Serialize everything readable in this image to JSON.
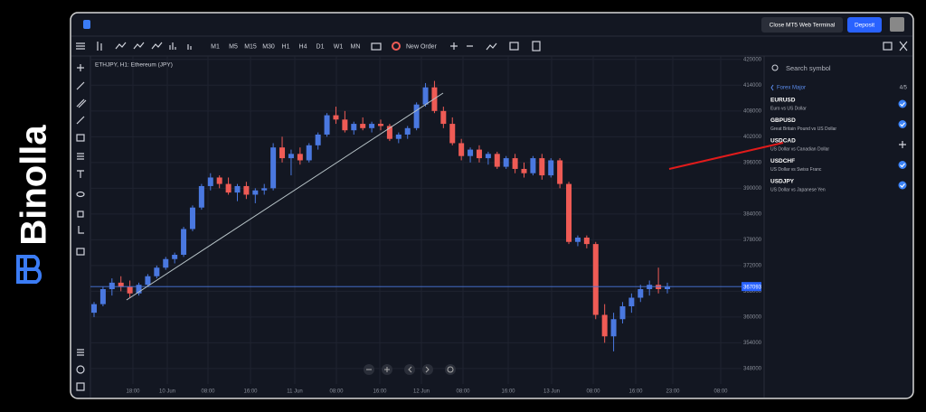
{
  "brand": "Binolla",
  "topbar": {
    "close_button": "Close MT5 Web Terminal",
    "deposit_button": "Deposit"
  },
  "toolbar": {
    "timeframes": [
      "M1",
      "M5",
      "M15",
      "M30",
      "H1",
      "H4",
      "D1",
      "W1",
      "MN"
    ],
    "active": "H1",
    "new_order": "New Order"
  },
  "chart": {
    "type": "candlestick",
    "title": "ETHJPY, H1: Ethereum (JPY)",
    "ylim": [
      344400,
      420800
    ],
    "yticks": [
      420000,
      414000,
      408000,
      402000,
      396000,
      390000,
      384000,
      378000,
      372000,
      366000,
      360000,
      354000,
      348000
    ],
    "xticks": [
      "18:00",
      "10 Jun",
      "08:00",
      "16:00",
      "11 Jun",
      "08:00",
      "16:00",
      "12 Jun",
      "08:00",
      "16:00",
      "13 Jun",
      "08:00",
      "16:00",
      "23:00",
      "08:00"
    ],
    "up_color": "#4a78e0",
    "down_color": "#ef5b55",
    "price_line": 367093,
    "candles": [
      [
        361000,
        363500,
        360000,
        363000
      ],
      [
        363000,
        367000,
        362500,
        366500
      ],
      [
        366500,
        369000,
        365000,
        368000
      ],
      [
        368000,
        369500,
        366000,
        367000
      ],
      [
        367000,
        368500,
        364500,
        365500
      ],
      [
        365500,
        368000,
        365000,
        367500
      ],
      [
        367500,
        370000,
        367000,
        369500
      ],
      [
        369500,
        372000,
        369000,
        371500
      ],
      [
        371500,
        374000,
        371000,
        373500
      ],
      [
        373500,
        375000,
        372500,
        374500
      ],
      [
        374500,
        381000,
        374000,
        380500
      ],
      [
        380500,
        386000,
        380000,
        385500
      ],
      [
        385500,
        391000,
        385000,
        390500
      ],
      [
        390500,
        393500,
        389500,
        392500
      ],
      [
        392500,
        393000,
        390000,
        391000
      ],
      [
        391000,
        392500,
        388500,
        389000
      ],
      [
        389000,
        391000,
        387000,
        390500
      ],
      [
        390500,
        391500,
        387500,
        388500
      ],
      [
        388500,
        390000,
        386500,
        389500
      ],
      [
        389500,
        391000,
        388500,
        390000
      ],
      [
        390000,
        400500,
        389500,
        399500
      ],
      [
        399500,
        402000,
        396000,
        397000
      ],
      [
        397000,
        399000,
        393000,
        398000
      ],
      [
        398000,
        399500,
        395500,
        396500
      ],
      [
        396500,
        400500,
        396000,
        400000
      ],
      [
        400000,
        403000,
        399000,
        402500
      ],
      [
        402500,
        407500,
        402000,
        407000
      ],
      [
        407000,
        409000,
        405000,
        406000
      ],
      [
        406000,
        408000,
        403000,
        403500
      ],
      [
        403500,
        405500,
        402500,
        405000
      ],
      [
        405000,
        406500,
        403500,
        404000
      ],
      [
        404000,
        405500,
        403000,
        405000
      ],
      [
        405000,
        406000,
        403500,
        404500
      ],
      [
        404500,
        405000,
        401000,
        401500
      ],
      [
        401500,
        403000,
        400500,
        402500
      ],
      [
        402500,
        404500,
        401500,
        404000
      ],
      [
        404000,
        410000,
        403500,
        409500
      ],
      [
        409500,
        414500,
        409000,
        413500
      ],
      [
        413500,
        415000,
        407500,
        408000
      ],
      [
        408000,
        409000,
        404000,
        405000
      ],
      [
        405000,
        406500,
        400000,
        400500
      ],
      [
        400500,
        401500,
        396500,
        397500
      ],
      [
        397500,
        399500,
        396000,
        399000
      ],
      [
        399000,
        400000,
        396000,
        397000
      ],
      [
        397000,
        398500,
        395500,
        398000
      ],
      [
        398000,
        398500,
        394500,
        395000
      ],
      [
        395000,
        397500,
        394500,
        397000
      ],
      [
        397000,
        398000,
        393500,
        394500
      ],
      [
        394500,
        396000,
        392500,
        393500
      ],
      [
        393500,
        397500,
        393000,
        397000
      ],
      [
        397000,
        398000,
        392000,
        393000
      ],
      [
        393000,
        397000,
        392500,
        396500
      ],
      [
        396500,
        397000,
        390000,
        391000
      ],
      [
        391000,
        391500,
        377000,
        377500
      ],
      [
        377500,
        379000,
        376500,
        378500
      ],
      [
        378500,
        379000,
        376000,
        377000
      ],
      [
        377000,
        377500,
        359500,
        360500
      ],
      [
        360500,
        363000,
        354000,
        355500
      ],
      [
        355500,
        361000,
        352000,
        359500
      ],
      [
        359500,
        363500,
        358500,
        362500
      ],
      [
        362500,
        365500,
        361000,
        364500
      ],
      [
        364500,
        367500,
        363500,
        366500
      ],
      [
        366500,
        368500,
        365000,
        367500
      ],
      [
        367500,
        371500,
        365500,
        366500
      ],
      [
        366500,
        368000,
        365500,
        367000
      ]
    ]
  },
  "sidebar": {
    "search_placeholder": "Search symbol",
    "group": "Forex Major",
    "count": "4/5",
    "symbols": [
      {
        "name": "EURUSD",
        "description": "Euro vs US Dollar",
        "added": true
      },
      {
        "name": "GBPUSD",
        "description": "Great Britain Pound vs US Dollar",
        "added": true
      },
      {
        "name": "USDCAD",
        "description": "US Dollar vs Canadian Dollar",
        "added": false
      },
      {
        "name": "USDCHF",
        "description": "US Dollar vs Swiss Franc",
        "added": true
      },
      {
        "name": "USDJPY",
        "description": "US Dollar vs Japanese Yen",
        "added": true
      }
    ]
  }
}
